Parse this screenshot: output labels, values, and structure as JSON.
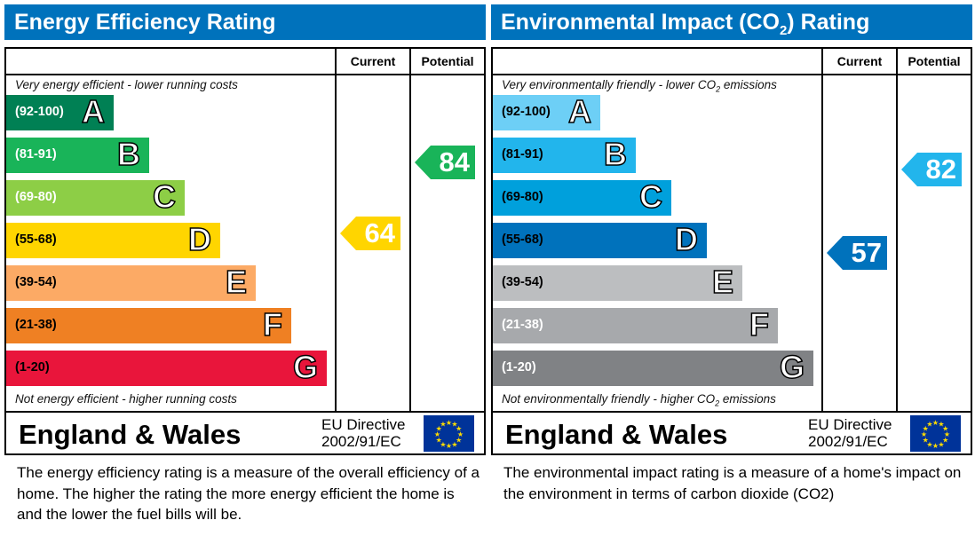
{
  "chart_data": [
    {
      "type": "bar",
      "title": "Energy Efficiency Rating",
      "columns": [
        "Current",
        "Potential"
      ],
      "top_note": "Very energy efficient - lower running costs",
      "bottom_note": "Not energy efficient - higher running costs",
      "bands": [
        {
          "letter": "A",
          "range": "(92-100)",
          "color": "#008054",
          "text_color": "#ffffff"
        },
        {
          "letter": "B",
          "range": "(81-91)",
          "color": "#19b459",
          "text_color": "#ffffff"
        },
        {
          "letter": "C",
          "range": "(69-80)",
          "color": "#8dce46",
          "text_color": "#ffffff"
        },
        {
          "letter": "D",
          "range": "(55-68)",
          "color": "#ffd500",
          "text_color": "#000000"
        },
        {
          "letter": "E",
          "range": "(39-54)",
          "color": "#fcaa65",
          "text_color": "#000000"
        },
        {
          "letter": "F",
          "range": "(21-38)",
          "color": "#ef8023",
          "text_color": "#000000"
        },
        {
          "letter": "G",
          "range": "(1-20)",
          "color": "#e9153b",
          "text_color": "#000000"
        }
      ],
      "current": {
        "value": 64,
        "band": "D",
        "color": "#ffd500"
      },
      "potential": {
        "value": 84,
        "band": "B",
        "color": "#19b459"
      },
      "region": "England & Wales",
      "directive": [
        "EU Directive",
        "2002/91/EC"
      ],
      "description": "The energy efficiency rating is a measure of the overall efficiency of a home.  The higher the rating the more energy efficient the home is and the lower the fuel bills will be."
    },
    {
      "type": "bar",
      "title": "Environmental Impact (CO2) Rating",
      "columns": [
        "Current",
        "Potential"
      ],
      "top_note": "Very environmentally friendly - lower CO2 emissions",
      "bottom_note": "Not environmentally friendly - higher CO2 emissions",
      "bands": [
        {
          "letter": "A",
          "range": "(92-100)",
          "color": "#6dcff6",
          "text_color": "#000000"
        },
        {
          "letter": "B",
          "range": "(81-91)",
          "color": "#22b5ec",
          "text_color": "#000000"
        },
        {
          "letter": "C",
          "range": "(69-80)",
          "color": "#00a0dc",
          "text_color": "#000000"
        },
        {
          "letter": "D",
          "range": "(55-68)",
          "color": "#0072bc",
          "text_color": "#000000"
        },
        {
          "letter": "E",
          "range": "(39-54)",
          "color": "#bcbec0",
          "text_color": "#000000"
        },
        {
          "letter": "F",
          "range": "(21-38)",
          "color": "#a7a9ac",
          "text_color": "#ffffff"
        },
        {
          "letter": "G",
          "range": "(1-20)",
          "color": "#808285",
          "text_color": "#ffffff"
        }
      ],
      "current": {
        "value": 57,
        "band": "D",
        "color": "#0072bc"
      },
      "potential": {
        "value": 82,
        "band": "B",
        "color": "#22b5ec"
      },
      "region": "England & Wales",
      "directive": [
        "EU Directive",
        "2002/91/EC"
      ],
      "description": "The environmental impact rating is a measure of a home's impact on the environment in terms of carbon dioxide (CO2)"
    }
  ]
}
